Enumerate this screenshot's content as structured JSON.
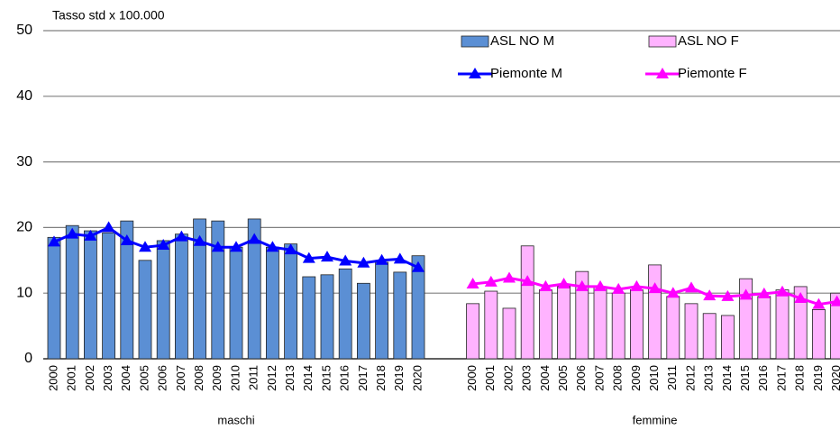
{
  "chart_data": {
    "type": "bar-line",
    "y_label": "Tasso std x 100.000",
    "categories": [
      "2000",
      "2001",
      "2002",
      "2003",
      "2004",
      "2005",
      "2006",
      "2007",
      "2008",
      "2009",
      "2010",
      "2011",
      "2012",
      "2013",
      "2014",
      "2015",
      "2016",
      "2017",
      "2018",
      "2019",
      "2020",
      null,
      null,
      "2000",
      "2001",
      "2002",
      "2003",
      "2004",
      "2005",
      "2006",
      "2007",
      "2008",
      "2009",
      "2010",
      "2011",
      "2012",
      "2013",
      "2014",
      "2015",
      "2016",
      "2017",
      "2018",
      "2019",
      "2020"
    ],
    "groups": [
      "maschi",
      "femmine"
    ],
    "series": [
      {
        "name": "ASL NO M",
        "kind": "bar",
        "color": "#5b8fd4",
        "values": [
          18.5,
          20.3,
          19.5,
          19.2,
          21.0,
          15.0,
          18.0,
          19.0,
          21.3,
          21.0,
          17.0,
          21.3,
          17.0,
          17.5,
          12.5,
          12.8,
          13.7,
          11.5,
          14.7,
          13.2,
          15.7,
          null,
          null,
          null,
          null,
          null,
          null,
          null,
          null,
          null,
          null,
          null,
          null,
          null,
          null,
          null,
          null,
          null,
          null,
          null,
          null,
          null,
          null,
          null
        ]
      },
      {
        "name": "ASL NO F",
        "kind": "bar",
        "color": "#ffb3ff",
        "values": [
          null,
          null,
          null,
          null,
          null,
          null,
          null,
          null,
          null,
          null,
          null,
          null,
          null,
          null,
          null,
          null,
          null,
          null,
          null,
          null,
          null,
          null,
          null,
          8.4,
          10.3,
          7.7,
          17.2,
          10.5,
          11.0,
          13.3,
          11.0,
          10.0,
          10.5,
          14.3,
          9.5,
          8.4,
          6.9,
          6.6,
          12.2,
          9.5,
          10.5,
          11.0,
          7.5,
          10.0
        ]
      },
      {
        "name": "Piemonte M",
        "kind": "line",
        "color": "#0000ff",
        "values": [
          17.8,
          19.0,
          18.7,
          20.0,
          18.0,
          17.0,
          17.3,
          18.6,
          17.9,
          17.0,
          17.0,
          18.2,
          17.0,
          16.6,
          15.3,
          15.5,
          14.9,
          14.6,
          15.0,
          15.2,
          13.9,
          null,
          null,
          null,
          null,
          null,
          null,
          null,
          null,
          null,
          null,
          null,
          null,
          null,
          null,
          null,
          null,
          null,
          null,
          null,
          null,
          null,
          null,
          null
        ]
      },
      {
        "name": "Piemonte F",
        "kind": "line",
        "color": "#ff00ff",
        "values": [
          null,
          null,
          null,
          null,
          null,
          null,
          null,
          null,
          null,
          null,
          null,
          null,
          null,
          null,
          null,
          null,
          null,
          null,
          null,
          null,
          null,
          null,
          null,
          11.4,
          11.7,
          12.3,
          11.8,
          11.0,
          11.4,
          11.0,
          11.0,
          10.6,
          11.0,
          10.7,
          10.0,
          10.8,
          9.6,
          9.5,
          9.7,
          9.9,
          10.2,
          9.2,
          8.3,
          8.7
        ]
      }
    ],
    "ylim": [
      0,
      50
    ],
    "yticks": [
      0,
      10,
      20,
      30,
      40,
      50
    ],
    "grid": true,
    "legend": "upper right"
  }
}
